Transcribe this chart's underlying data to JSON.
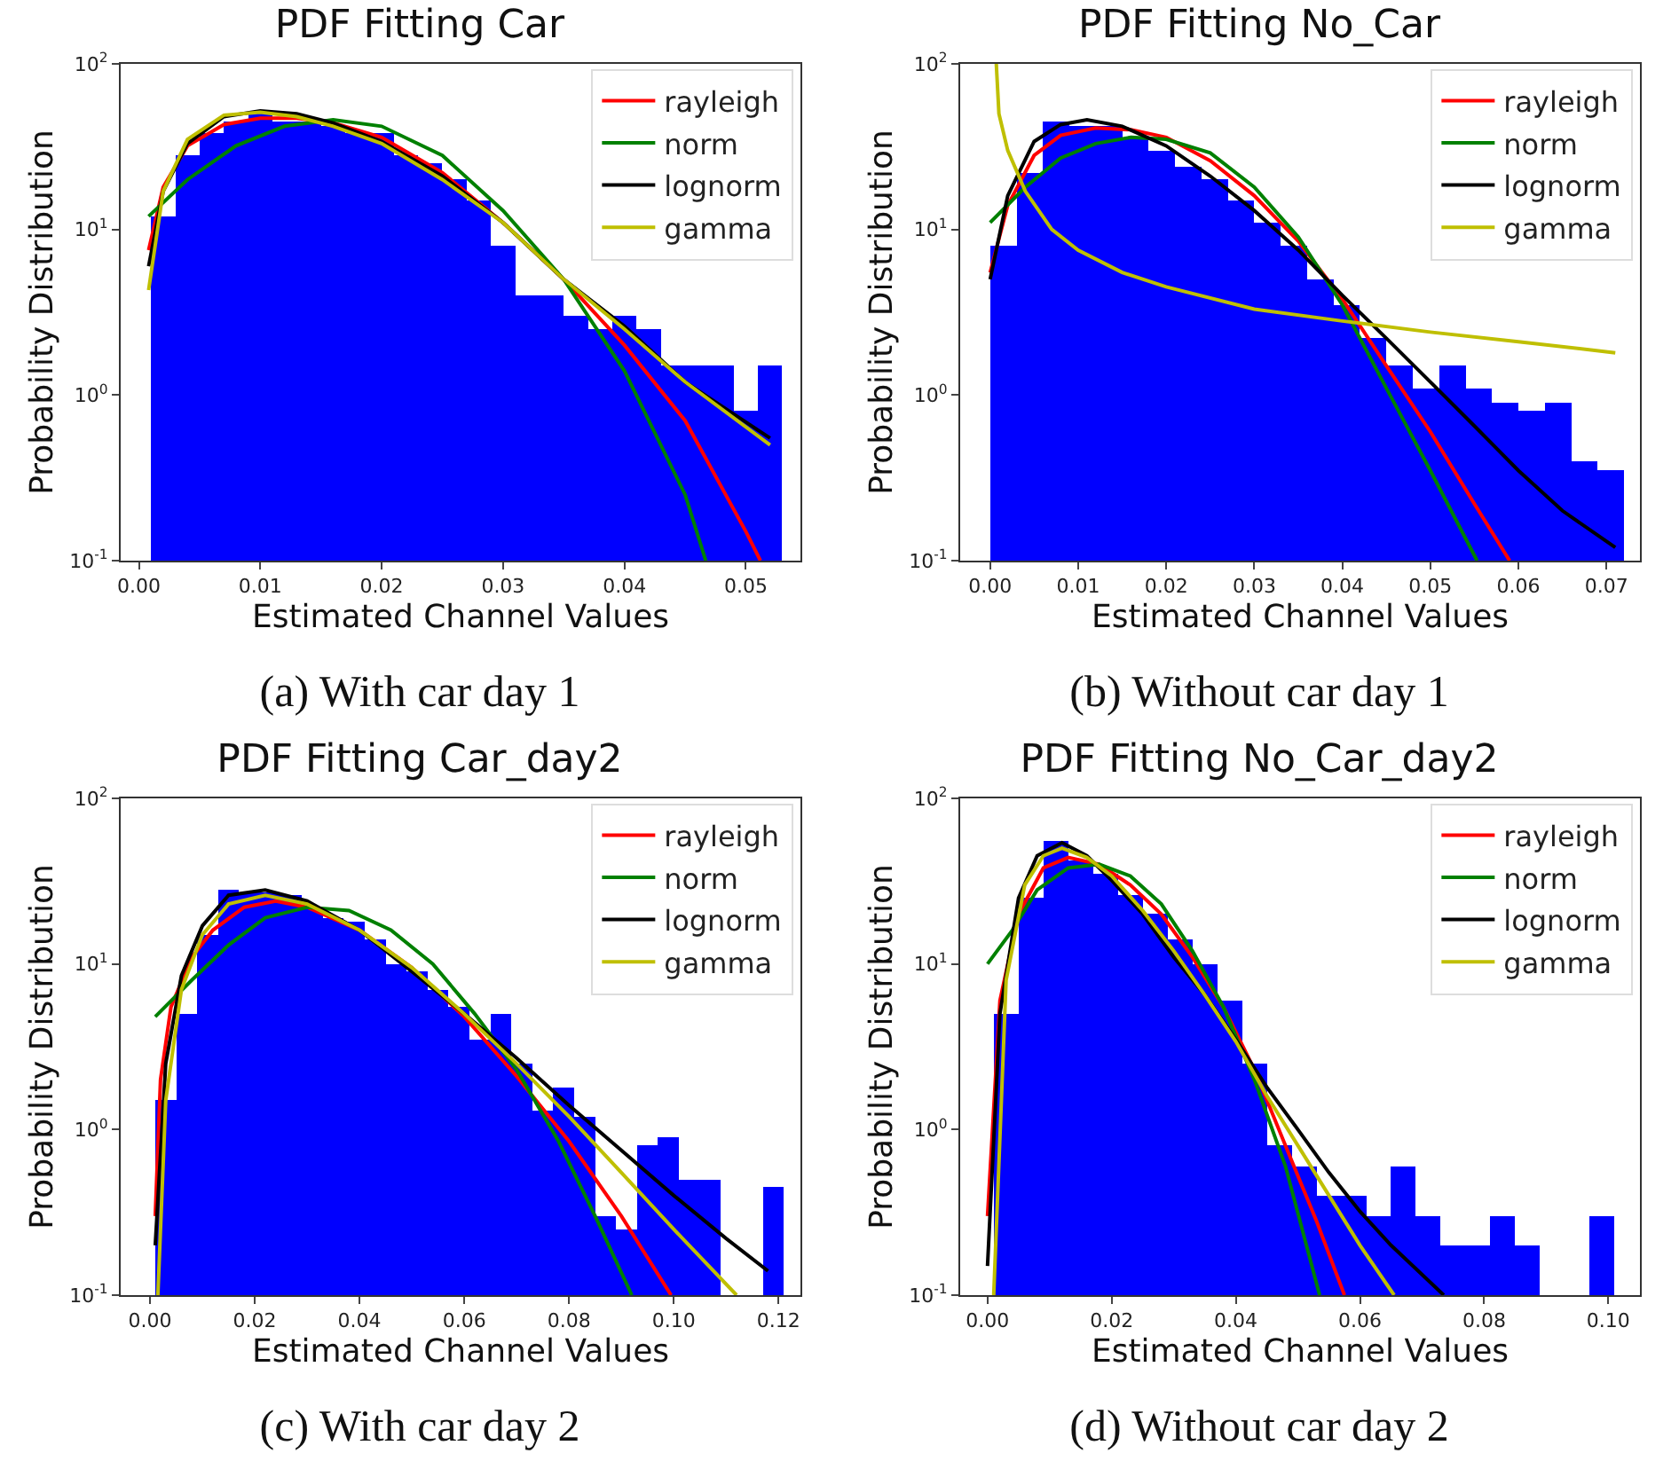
{
  "chart_data": [
    {
      "type": "histogram",
      "title": "PDF Fitting Car",
      "xlabel": "Estimated Channel Values",
      "ylabel": "Probability Distribution",
      "color": "#0000ff",
      "log": "y",
      "grid": false,
      "legend": "top right",
      "annotations": [
        "(a) With car day 1"
      ],
      "bins": [
        0.001,
        0.003,
        0.005,
        0.007,
        0.009,
        0.011,
        0.013,
        0.015,
        0.017,
        0.019,
        0.021,
        0.023,
        0.025,
        0.027,
        0.029,
        0.031,
        0.033,
        0.035,
        0.037,
        0.039,
        0.041,
        0.043,
        0.045,
        0.047,
        0.049,
        0.051,
        0.053
      ],
      "values": [
        12,
        28,
        38,
        45,
        50,
        45,
        45,
        42,
        38,
        38,
        28,
        25,
        20,
        15,
        8,
        4,
        4,
        3,
        2.5,
        3,
        2.5,
        1.5,
        1.5,
        1.5,
        0.8,
        1.5
      ],
      "xlim": [
        -0.0015,
        0.0545
      ],
      "xticks": [
        {
          "value": 0,
          "label": "0.00"
        },
        {
          "value": 0.01,
          "label": "0.01"
        },
        {
          "value": 0.02,
          "label": "0.02"
        },
        {
          "value": 0.03,
          "label": "0.03"
        },
        {
          "value": 0.04,
          "label": "0.04"
        },
        {
          "value": 0.05,
          "label": "0.05"
        }
      ],
      "ylim": [
        0.1,
        100
      ],
      "yticks": [
        {
          "value": 0.1,
          "label": "10$^{-1}$"
        },
        {
          "value": 1,
          "label": "10$^{0}$"
        },
        {
          "value": 10,
          "label": "10$^{1}$"
        },
        {
          "value": 100,
          "label": "10$^{2}$"
        }
      ],
      "series": [
        {
          "type": "line",
          "name": "rayleigh",
          "color": "#ff0000",
          "x": [
            0.0008,
            0.002,
            0.004,
            0.007,
            0.01,
            0.013,
            0.016,
            0.02,
            0.025,
            0.03,
            0.035,
            0.04,
            0.045,
            0.05,
            0.0512
          ],
          "values": [
            7.5,
            18,
            32,
            43,
            47,
            47,
            44,
            36,
            22,
            11,
            5,
            2,
            0.7,
            0.15,
            0.1
          ]
        },
        {
          "type": "line",
          "name": "norm",
          "color": "#008000",
          "x": [
            0.0008,
            0.004,
            0.008,
            0.012,
            0.016,
            0.02,
            0.025,
            0.03,
            0.035,
            0.04,
            0.045,
            0.0467
          ],
          "values": [
            12,
            20,
            32,
            42,
            46,
            42,
            28,
            13,
            5,
            1.4,
            0.25,
            0.1
          ]
        },
        {
          "type": "line",
          "name": "lognorm",
          "color": "#000000",
          "x": [
            0.0008,
            0.002,
            0.004,
            0.007,
            0.01,
            0.013,
            0.016,
            0.02,
            0.025,
            0.03,
            0.035,
            0.04,
            0.045,
            0.052
          ],
          "values": [
            6,
            17,
            33,
            48,
            52,
            50,
            44,
            34,
            21,
            11,
            5,
            2.6,
            1.2,
            0.55
          ]
        },
        {
          "type": "line",
          "name": "gamma",
          "color": "#bfbf00",
          "x": [
            0.0008,
            0.002,
            0.004,
            0.007,
            0.01,
            0.013,
            0.016,
            0.02,
            0.025,
            0.03,
            0.035,
            0.04,
            0.045,
            0.052
          ],
          "values": [
            4.3,
            17,
            35,
            49,
            51,
            48,
            42,
            33,
            20,
            11,
            5,
            2.5,
            1.2,
            0.5
          ]
        }
      ]
    },
    {
      "type": "histogram",
      "title": "PDF Fitting No_Car",
      "xlabel": "Estimated Channel Values",
      "ylabel": "Probability Distribution",
      "color": "#0000ff",
      "log": "y",
      "grid": false,
      "legend": "top right",
      "annotations": [
        "(b) Without car day 1"
      ],
      "bins": [
        0,
        0.003,
        0.006,
        0.009,
        0.012,
        0.015,
        0.018,
        0.021,
        0.024,
        0.027,
        0.03,
        0.033,
        0.036,
        0.039,
        0.042,
        0.045,
        0.048,
        0.051,
        0.054,
        0.057,
        0.06,
        0.063,
        0.066,
        0.069,
        0.072
      ],
      "values": [
        8,
        22,
        45,
        42,
        42,
        36,
        30,
        24,
        20,
        15,
        11,
        8,
        5,
        3.5,
        2.2,
        1.5,
        1.1,
        1.5,
        1.1,
        0.9,
        0.8,
        0.9,
        0.4,
        0.35
      ],
      "xlim": [
        -0.0034,
        0.0738
      ],
      "xticks": [
        {
          "value": 0,
          "label": "0.00"
        },
        {
          "value": 0.01,
          "label": "0.01"
        },
        {
          "value": 0.02,
          "label": "0.02"
        },
        {
          "value": 0.03,
          "label": "0.03"
        },
        {
          "value": 0.04,
          "label": "0.04"
        },
        {
          "value": 0.05,
          "label": "0.05"
        },
        {
          "value": 0.06,
          "label": "0.06"
        },
        {
          "value": 0.07,
          "label": "0.07"
        }
      ],
      "ylim": [
        0.1,
        100
      ],
      "yticks": [
        {
          "value": 0.1,
          "label": "10$^{-1}$"
        },
        {
          "value": 1,
          "label": "10$^{0}$"
        },
        {
          "value": 10,
          "label": "10$^{1}$"
        },
        {
          "value": 100,
          "label": "10$^{2}$"
        }
      ],
      "series": [
        {
          "type": "line",
          "name": "rayleigh",
          "color": "#ff0000",
          "x": [
            0,
            0.002,
            0.005,
            0.008,
            0.012,
            0.016,
            0.02,
            0.025,
            0.03,
            0.035,
            0.04,
            0.045,
            0.05,
            0.055,
            0.059
          ],
          "values": [
            5.5,
            14,
            28,
            37,
            41,
            40,
            36,
            26,
            16,
            8.5,
            3.8,
            1.5,
            0.6,
            0.22,
            0.1
          ]
        },
        {
          "type": "line",
          "name": "norm",
          "color": "#008000",
          "x": [
            0,
            0.004,
            0.008,
            0.012,
            0.016,
            0.02,
            0.025,
            0.03,
            0.035,
            0.04,
            0.045,
            0.05,
            0.0553
          ],
          "values": [
            11,
            18,
            27,
            33,
            36,
            35,
            29,
            18,
            9,
            3.5,
            1.1,
            0.35,
            0.1
          ]
        },
        {
          "type": "line",
          "name": "lognorm",
          "color": "#000000",
          "x": [
            0,
            0.002,
            0.005,
            0.008,
            0.011,
            0.015,
            0.02,
            0.025,
            0.03,
            0.035,
            0.04,
            0.045,
            0.05,
            0.055,
            0.06,
            0.065,
            0.071
          ],
          "values": [
            5,
            16,
            34,
            43,
            46,
            42,
            32,
            21,
            13,
            7.5,
            4,
            2.2,
            1.2,
            0.65,
            0.35,
            0.2,
            0.12
          ]
        },
        {
          "type": "line",
          "name": "gamma",
          "color": "#bfbf00",
          "x": [
            0.0007,
            0.001,
            0.002,
            0.004,
            0.007,
            0.01,
            0.015,
            0.02,
            0.03,
            0.04,
            0.05,
            0.06,
            0.071
          ],
          "values": [
            100,
            50,
            30,
            17,
            10,
            7.5,
            5.5,
            4.5,
            3.3,
            2.8,
            2.4,
            2.1,
            1.8
          ]
        }
      ]
    },
    {
      "type": "histogram",
      "title": "PDF Fitting Car_day2",
      "xlabel": "Estimated Channel Values",
      "ylabel": "Probability Distribution",
      "color": "#0000ff",
      "log": "y",
      "grid": false,
      "legend": "top right",
      "annotations": [
        "(c) With car day 2"
      ],
      "bins": [
        0.001,
        0.005,
        0.009,
        0.013,
        0.017,
        0.021,
        0.025,
        0.029,
        0.033,
        0.037,
        0.041,
        0.045,
        0.049,
        0.053,
        0.057,
        0.061,
        0.065,
        0.069,
        0.073,
        0.077,
        0.081,
        0.085,
        0.089,
        0.093,
        0.097,
        0.101,
        0.105,
        0.109,
        0.113,
        0.117,
        0.121
      ],
      "values": [
        1.5,
        5,
        15,
        28,
        27,
        27,
        26,
        22,
        19,
        18,
        14,
        10,
        9,
        7,
        5.5,
        3.5,
        5,
        2.5,
        1.3,
        1.8,
        1.2,
        0.3,
        0.25,
        0.8,
        0.9,
        0.5,
        0.5,
        null,
        null,
        0.45
      ],
      "xlim": [
        -0.0056,
        0.1242
      ],
      "xticks": [
        {
          "value": 0,
          "label": "0.00"
        },
        {
          "value": 0.02,
          "label": "0.02"
        },
        {
          "value": 0.04,
          "label": "0.04"
        },
        {
          "value": 0.06,
          "label": "0.06"
        },
        {
          "value": 0.08,
          "label": "0.08"
        },
        {
          "value": 0.1,
          "label": "0.10"
        },
        {
          "value": 0.12,
          "label": "0.12"
        }
      ],
      "ylim": [
        0.1,
        100
      ],
      "yticks": [
        {
          "value": 0.1,
          "label": "10$^{-1}$"
        },
        {
          "value": 1,
          "label": "10$^{0}$"
        },
        {
          "value": 10,
          "label": "10$^{1}$"
        },
        {
          "value": 100,
          "label": "10$^{2}$"
        }
      ],
      "series": [
        {
          "type": "line",
          "name": "rayleigh",
          "color": "#ff0000",
          "x": [
            0.001,
            0.002,
            0.004,
            0.008,
            0.012,
            0.018,
            0.024,
            0.03,
            0.04,
            0.05,
            0.06,
            0.07,
            0.08,
            0.09,
            0.0995
          ],
          "values": [
            0.3,
            2,
            5.5,
            11,
            16,
            22,
            24,
            22,
            16,
            9.5,
            4.8,
            2.1,
            0.85,
            0.3,
            0.1
          ]
        },
        {
          "type": "line",
          "name": "norm",
          "color": "#008000",
          "x": [
            0.001,
            0.008,
            0.015,
            0.022,
            0.03,
            0.038,
            0.046,
            0.054,
            0.062,
            0.07,
            0.078,
            0.085,
            0.092
          ],
          "values": [
            4.8,
            8,
            13,
            19,
            22,
            21,
            16,
            10,
            5,
            2.3,
            0.85,
            0.3,
            0.1
          ]
        },
        {
          "type": "line",
          "name": "lognorm",
          "color": "#000000",
          "x": [
            0.001,
            0.003,
            0.006,
            0.01,
            0.015,
            0.022,
            0.03,
            0.04,
            0.05,
            0.06,
            0.07,
            0.08,
            0.09,
            0.1,
            0.11,
            0.118
          ],
          "values": [
            0.2,
            2.5,
            8.5,
            17,
            26,
            28,
            24,
            16,
            9,
            5,
            2.7,
            1.4,
            0.75,
            0.4,
            0.22,
            0.14
          ]
        },
        {
          "type": "line",
          "name": "gamma",
          "color": "#bfbf00",
          "x": [
            0.0015,
            0.003,
            0.006,
            0.01,
            0.015,
            0.022,
            0.03,
            0.04,
            0.05,
            0.06,
            0.07,
            0.08,
            0.09,
            0.1,
            0.112
          ],
          "values": [
            0.1,
            1.5,
            7,
            15,
            23,
            26,
            23,
            16,
            9.5,
            5,
            2.5,
            1.2,
            0.55,
            0.25,
            0.1
          ]
        }
      ]
    },
    {
      "type": "histogram",
      "title": "PDF Fitting No_Car_day2",
      "xlabel": "Estimated Channel Values",
      "ylabel": "Probability Distribution",
      "color": "#0000ff",
      "log": "y",
      "grid": false,
      "legend": "top right",
      "annotations": [
        "(d) Without car day 2"
      ],
      "bins": [
        0.001,
        0.005,
        0.009,
        0.013,
        0.017,
        0.021,
        0.025,
        0.029,
        0.033,
        0.037,
        0.041,
        0.045,
        0.049,
        0.053,
        0.057,
        0.061,
        0.065,
        0.069,
        0.073,
        0.077,
        0.081,
        0.085,
        0.089,
        0.093,
        0.097,
        0.101
      ],
      "values": [
        5,
        25,
        55,
        42,
        35,
        26,
        20,
        14,
        10,
        6,
        2.5,
        0.8,
        0.6,
        0.4,
        0.4,
        0.3,
        0.6,
        0.3,
        0.2,
        0.2,
        0.3,
        0.2,
        null,
        null,
        0.3
      ],
      "xlim": [
        -0.0044,
        0.1051
      ],
      "xticks": [
        {
          "value": 0,
          "label": "0.00"
        },
        {
          "value": 0.02,
          "label": "0.02"
        },
        {
          "value": 0.04,
          "label": "0.04"
        },
        {
          "value": 0.06,
          "label": "0.06"
        },
        {
          "value": 0.08,
          "label": "0.08"
        },
        {
          "value": 0.1,
          "label": "0.10"
        }
      ],
      "ylim": [
        0.1,
        100
      ],
      "yticks": [
        {
          "value": 0.1,
          "label": "10$^{-1}$"
        },
        {
          "value": 1,
          "label": "10$^{0}$"
        },
        {
          "value": 10,
          "label": "10$^{1}$"
        },
        {
          "value": 100,
          "label": "10$^{2}$"
        }
      ],
      "series": [
        {
          "type": "line",
          "name": "rayleigh",
          "color": "#ff0000",
          "x": [
            0,
            0.002,
            0.005,
            0.009,
            0.013,
            0.018,
            0.023,
            0.028,
            0.033,
            0.038,
            0.043,
            0.048,
            0.053,
            0.0575
          ],
          "values": [
            0.3,
            6,
            20,
            38,
            44,
            40,
            30,
            20,
            11,
            5.5,
            2.3,
            0.8,
            0.28,
            0.1
          ]
        },
        {
          "type": "line",
          "name": "norm",
          "color": "#008000",
          "x": [
            0,
            0.004,
            0.008,
            0.013,
            0.018,
            0.023,
            0.028,
            0.033,
            0.038,
            0.043,
            0.048,
            0.0535
          ],
          "values": [
            10,
            16,
            28,
            38,
            40,
            34,
            23,
            12,
            5.5,
            2,
            0.6,
            0.1
          ]
        },
        {
          "type": "line",
          "name": "lognorm",
          "color": "#000000",
          "x": [
            0,
            0.002,
            0.005,
            0.008,
            0.012,
            0.016,
            0.02,
            0.025,
            0.03,
            0.035,
            0.04,
            0.045,
            0.05,
            0.055,
            0.06,
            0.065,
            0.0735
          ],
          "values": [
            0.15,
            5,
            25,
            45,
            54,
            45,
            32,
            20,
            11,
            6.5,
            3.5,
            1.8,
            1,
            0.55,
            0.32,
            0.2,
            0.1
          ]
        },
        {
          "type": "line",
          "name": "gamma",
          "color": "#bfbf00",
          "x": [
            0.001,
            0.003,
            0.006,
            0.009,
            0.012,
            0.016,
            0.02,
            0.025,
            0.03,
            0.035,
            0.04,
            0.045,
            0.05,
            0.055,
            0.06,
            0.0655
          ],
          "values": [
            0.1,
            8,
            30,
            45,
            50,
            44,
            34,
            21,
            12,
            6.5,
            3.4,
            1.6,
            0.8,
            0.4,
            0.2,
            0.1
          ]
        }
      ]
    }
  ]
}
